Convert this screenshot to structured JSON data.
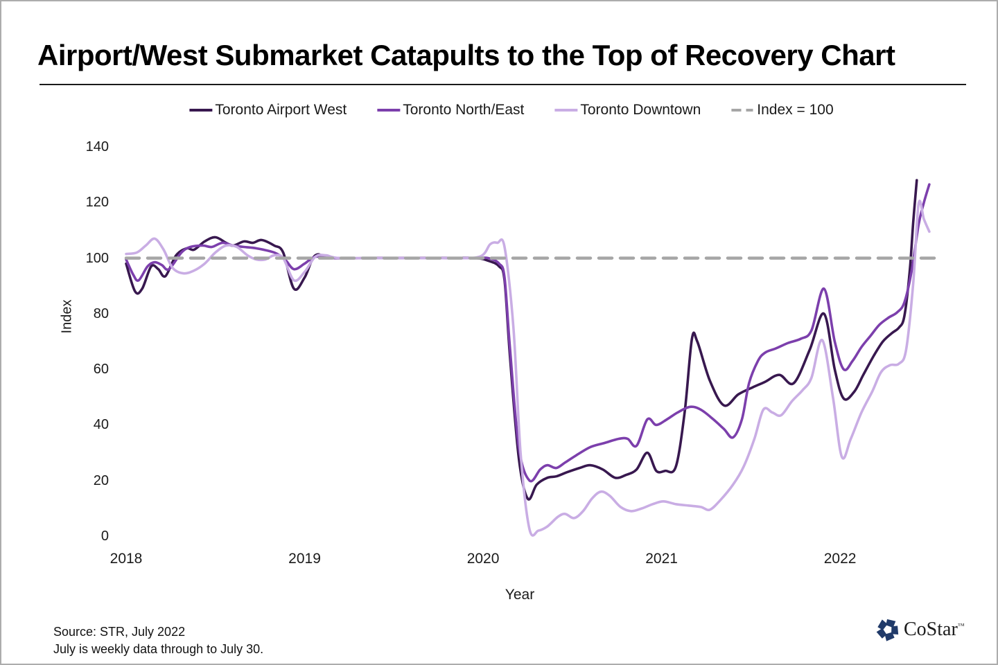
{
  "chart_data": {
    "type": "line",
    "title": "Airport/West Submarket Catapults to the Top of Recovery Chart",
    "xlabel": "Year",
    "ylabel": "Index",
    "xlim": [
      2018,
      2022.53
    ],
    "ylim": [
      0,
      140
    ],
    "yticks": [
      0,
      20,
      40,
      60,
      80,
      100,
      120,
      140
    ],
    "xticks": [
      2018,
      2019,
      2020,
      2021,
      2022
    ],
    "grid": false,
    "legend_position": "top",
    "reference_line": {
      "label": "Index = 100",
      "value": 100,
      "color": "#A6A6A6",
      "style": "dashed"
    },
    "series": [
      {
        "name": "Toronto Airport West",
        "color": "#38184F",
        "points": [
          [
            2018.0,
            98
          ],
          [
            2018.05,
            88
          ],
          [
            2018.09,
            89
          ],
          [
            2018.14,
            97
          ],
          [
            2018.18,
            96
          ],
          [
            2018.22,
            93.5
          ],
          [
            2018.28,
            101
          ],
          [
            2018.34,
            103.5
          ],
          [
            2018.38,
            103
          ],
          [
            2018.44,
            106
          ],
          [
            2018.5,
            107.5
          ],
          [
            2018.56,
            105.5
          ],
          [
            2018.6,
            104.5
          ],
          [
            2018.66,
            106
          ],
          [
            2018.71,
            105.5
          ],
          [
            2018.76,
            106.5
          ],
          [
            2018.83,
            104.5
          ],
          [
            2018.88,
            102
          ],
          [
            2018.94,
            89
          ],
          [
            2019.0,
            93
          ],
          [
            2019.06,
            101
          ],
          [
            2019.15,
            100
          ],
          [
            2019.4,
            100
          ],
          [
            2019.7,
            100
          ],
          [
            2019.95,
            100
          ],
          [
            2020.03,
            99
          ],
          [
            2020.09,
            97
          ],
          [
            2020.12,
            92
          ],
          [
            2020.15,
            65
          ],
          [
            2020.2,
            28
          ],
          [
            2020.25,
            13.5
          ],
          [
            2020.3,
            18.5
          ],
          [
            2020.36,
            21
          ],
          [
            2020.41,
            21.5
          ],
          [
            2020.47,
            23
          ],
          [
            2020.54,
            24.5
          ],
          [
            2020.6,
            25.5
          ],
          [
            2020.67,
            24
          ],
          [
            2020.74,
            21
          ],
          [
            2020.8,
            22
          ],
          [
            2020.86,
            24
          ],
          [
            2020.92,
            30
          ],
          [
            2020.97,
            23.5
          ],
          [
            2021.02,
            23.5
          ],
          [
            2021.08,
            25
          ],
          [
            2021.13,
            45
          ],
          [
            2021.17,
            71
          ],
          [
            2021.2,
            70
          ],
          [
            2021.27,
            56
          ],
          [
            2021.35,
            47
          ],
          [
            2021.43,
            51
          ],
          [
            2021.51,
            53.5
          ],
          [
            2021.58,
            55.5
          ],
          [
            2021.66,
            58
          ],
          [
            2021.74,
            55
          ],
          [
            2021.83,
            67
          ],
          [
            2021.91,
            80
          ],
          [
            2021.97,
            60
          ],
          [
            2022.02,
            49.5
          ],
          [
            2022.08,
            52
          ],
          [
            2022.13,
            58
          ],
          [
            2022.19,
            65
          ],
          [
            2022.24,
            70
          ],
          [
            2022.29,
            73
          ],
          [
            2022.33,
            75
          ],
          [
            2022.36,
            79
          ],
          [
            2022.39,
            95
          ],
          [
            2022.41,
            113
          ],
          [
            2022.43,
            128
          ]
        ]
      },
      {
        "name": "Toronto North/East",
        "color": "#7C3FAC",
        "points": [
          [
            2018.0,
            99.5
          ],
          [
            2018.04,
            94
          ],
          [
            2018.07,
            92
          ],
          [
            2018.12,
            97
          ],
          [
            2018.16,
            98.5
          ],
          [
            2018.2,
            97.5
          ],
          [
            2018.24,
            96
          ],
          [
            2018.31,
            102
          ],
          [
            2018.36,
            104
          ],
          [
            2018.43,
            104.5
          ],
          [
            2018.48,
            104
          ],
          [
            2018.54,
            105.5
          ],
          [
            2018.6,
            104.5
          ],
          [
            2018.66,
            104
          ],
          [
            2018.73,
            103.5
          ],
          [
            2018.83,
            102
          ],
          [
            2018.89,
            99.5
          ],
          [
            2018.94,
            96
          ],
          [
            2019.0,
            98
          ],
          [
            2019.06,
            100.5
          ],
          [
            2019.15,
            100
          ],
          [
            2019.4,
            100
          ],
          [
            2019.7,
            100
          ],
          [
            2019.95,
            100
          ],
          [
            2020.03,
            100
          ],
          [
            2020.09,
            98
          ],
          [
            2020.12,
            93
          ],
          [
            2020.15,
            68
          ],
          [
            2020.2,
            32
          ],
          [
            2020.26,
            20
          ],
          [
            2020.32,
            24
          ],
          [
            2020.36,
            25.5
          ],
          [
            2020.41,
            24.5
          ],
          [
            2020.46,
            26.5
          ],
          [
            2020.52,
            29
          ],
          [
            2020.6,
            32
          ],
          [
            2020.68,
            33.5
          ],
          [
            2020.76,
            35
          ],
          [
            2020.81,
            35
          ],
          [
            2020.86,
            32.5
          ],
          [
            2020.92,
            42
          ],
          [
            2020.97,
            40
          ],
          [
            2021.03,
            42
          ],
          [
            2021.09,
            44.5
          ],
          [
            2021.16,
            46.5
          ],
          [
            2021.22,
            45.5
          ],
          [
            2021.29,
            42
          ],
          [
            2021.35,
            38.5
          ],
          [
            2021.4,
            35.5
          ],
          [
            2021.45,
            42
          ],
          [
            2021.49,
            55
          ],
          [
            2021.54,
            63
          ],
          [
            2021.58,
            66
          ],
          [
            2021.64,
            67.5
          ],
          [
            2021.71,
            69.5
          ],
          [
            2021.78,
            71
          ],
          [
            2021.84,
            74
          ],
          [
            2021.91,
            89
          ],
          [
            2021.97,
            70
          ],
          [
            2022.02,
            60
          ],
          [
            2022.07,
            63
          ],
          [
            2022.12,
            68
          ],
          [
            2022.17,
            72
          ],
          [
            2022.22,
            76
          ],
          [
            2022.27,
            78.5
          ],
          [
            2022.32,
            80.5
          ],
          [
            2022.36,
            84
          ],
          [
            2022.4,
            95
          ],
          [
            2022.44,
            112
          ],
          [
            2022.47,
            120
          ],
          [
            2022.5,
            126.5
          ]
        ]
      },
      {
        "name": "Toronto Downtown",
        "color": "#C9ADE4",
        "points": [
          [
            2018.0,
            101.5
          ],
          [
            2018.06,
            102
          ],
          [
            2018.11,
            104.5
          ],
          [
            2018.16,
            107
          ],
          [
            2018.21,
            103
          ],
          [
            2018.26,
            96.5
          ],
          [
            2018.32,
            94.5
          ],
          [
            2018.38,
            95.5
          ],
          [
            2018.44,
            98
          ],
          [
            2018.5,
            102
          ],
          [
            2018.56,
            104.5
          ],
          [
            2018.62,
            104
          ],
          [
            2018.68,
            101
          ],
          [
            2018.73,
            99.5
          ],
          [
            2018.78,
            99.5
          ],
          [
            2018.83,
            101
          ],
          [
            2018.88,
            100
          ],
          [
            2018.94,
            92
          ],
          [
            2019.0,
            95
          ],
          [
            2019.06,
            100.5
          ],
          [
            2019.12,
            101
          ],
          [
            2019.2,
            100
          ],
          [
            2019.5,
            100
          ],
          [
            2019.8,
            100
          ],
          [
            2019.98,
            100.5
          ],
          [
            2020.04,
            105
          ],
          [
            2020.08,
            105.5
          ],
          [
            2020.12,
            104
          ],
          [
            2020.17,
            75
          ],
          [
            2020.21,
            30
          ],
          [
            2020.26,
            2.5
          ],
          [
            2020.31,
            2
          ],
          [
            2020.36,
            3.5
          ],
          [
            2020.42,
            7
          ],
          [
            2020.46,
            8
          ],
          [
            2020.51,
            6.5
          ],
          [
            2020.56,
            9
          ],
          [
            2020.61,
            13.5
          ],
          [
            2020.66,
            16
          ],
          [
            2020.71,
            14.5
          ],
          [
            2020.77,
            10.5
          ],
          [
            2020.83,
            9
          ],
          [
            2020.89,
            10
          ],
          [
            2020.95,
            11.5
          ],
          [
            2021.01,
            12.5
          ],
          [
            2021.08,
            11.5
          ],
          [
            2021.15,
            11
          ],
          [
            2021.22,
            10.5
          ],
          [
            2021.27,
            9.5
          ],
          [
            2021.33,
            13
          ],
          [
            2021.4,
            18.5
          ],
          [
            2021.46,
            25
          ],
          [
            2021.52,
            35
          ],
          [
            2021.57,
            45.5
          ],
          [
            2021.62,
            44.5
          ],
          [
            2021.67,
            43.5
          ],
          [
            2021.73,
            48.5
          ],
          [
            2021.79,
            52.5
          ],
          [
            2021.84,
            57
          ],
          [
            2021.9,
            70.5
          ],
          [
            2021.96,
            50
          ],
          [
            2022.01,
            28.5
          ],
          [
            2022.06,
            35
          ],
          [
            2022.12,
            44.5
          ],
          [
            2022.18,
            52
          ],
          [
            2022.23,
            59
          ],
          [
            2022.28,
            61.5
          ],
          [
            2022.33,
            62
          ],
          [
            2022.37,
            67
          ],
          [
            2022.41,
            91
          ],
          [
            2022.44,
            119.5
          ],
          [
            2022.47,
            114
          ],
          [
            2022.5,
            109.5
          ]
        ]
      }
    ]
  },
  "footer": {
    "source_line1": "Source: STR, July 2022",
    "source_line2": "July is weekly data through to July 30.",
    "logo_text": "CoStar",
    "logo_tm": "™",
    "logo_color": "#203A69"
  }
}
